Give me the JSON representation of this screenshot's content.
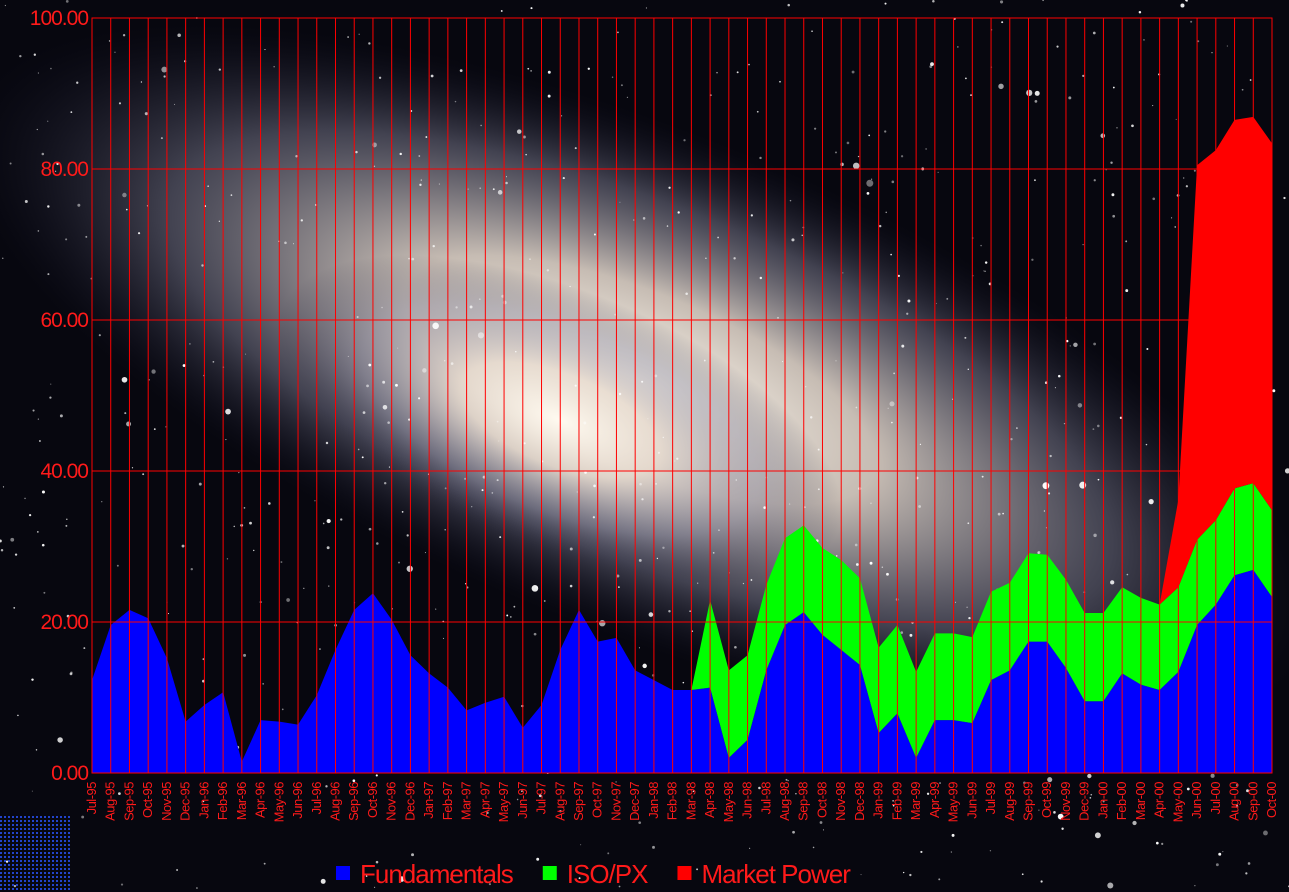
{
  "chart_data": {
    "type": "stacked-area",
    "categories": [
      "Jul-95",
      "Aug-95",
      "Sep-95",
      "Oct-95",
      "Nov-95",
      "Dec-95",
      "Jan-96",
      "Feb-96",
      "Mar-96",
      "Apr-96",
      "May-96",
      "Jun-96",
      "Jul-96",
      "Aug-96",
      "Sep-96",
      "Oct-96",
      "Nov-96",
      "Dec-96",
      "Jan-97",
      "Feb-97",
      "Mar-97",
      "Apr-97",
      "May-97",
      "Jun-97",
      "Jul-97",
      "Aug-97",
      "Sep-97",
      "Oct-97",
      "Nov-97",
      "Dec-97",
      "Jan-98",
      "Feb-98",
      "Mar-98",
      "Apr-98",
      "May-98",
      "Jun-98",
      "Jul-98",
      "Aug-98",
      "Sep-98",
      "Oct-98",
      "Nov-98",
      "Dec-98",
      "Jan-99",
      "Feb-99",
      "Mar-99",
      "Apr-99",
      "May-99",
      "Jun-99",
      "Jul-99",
      "Aug-99",
      "Sep-99",
      "Oct-99",
      "Nov-99",
      "Dec-99",
      "Jan-00",
      "Feb-00",
      "Mar-00",
      "Apr-00",
      "May-00",
      "Jun-00",
      "Jul-00",
      "Aug-00",
      "Sep-00",
      "Oct-00"
    ],
    "series": [
      {
        "name": "Fundamentals",
        "color": "#0000ff",
        "values": [
          12.3,
          19.6,
          21.6,
          20.5,
          15.2,
          6.8,
          9,
          10.7,
          1.5,
          7,
          6.8,
          6.4,
          10.3,
          16.3,
          21.6,
          23.8,
          20.3,
          15.6,
          13.2,
          11.3,
          8.3,
          9.3,
          10.1,
          6,
          9,
          16.3,
          21.6,
          17.4,
          17.9,
          13.6,
          12.3,
          11,
          11,
          11.3,
          2,
          4.4,
          13.6,
          19.6,
          21.3,
          18.3,
          16.3,
          14.3,
          5.3,
          7.9,
          2,
          7,
          7,
          6.6,
          12.3,
          13.6,
          17.4,
          17.4,
          13.9,
          9.5,
          9.5,
          13.2,
          11.7,
          11,
          13.4,
          19.6,
          22.3,
          26.2,
          26.9,
          23.3
        ]
      },
      {
        "name": "ISO/PX",
        "color": "#00ff00",
        "values": [
          0,
          0,
          0,
          0,
          0,
          0,
          0,
          0,
          0,
          0,
          0,
          0,
          0,
          0,
          0,
          0,
          0,
          0,
          0,
          0,
          0,
          0,
          0,
          0,
          0,
          0,
          0,
          0,
          0,
          0,
          0,
          0,
          0,
          11.6,
          11.6,
          11.2,
          11.3,
          11.5,
          11.5,
          11.5,
          11.9,
          11.5,
          11.3,
          11.7,
          11.4,
          11.5,
          11.5,
          11.4,
          11.7,
          11.6,
          11.7,
          11.5,
          11.7,
          11.7,
          11.7,
          11.4,
          11.5,
          11.3,
          11.2,
          11.3,
          11.2,
          11.5,
          11.5,
          11.5
        ]
      },
      {
        "name": "Market Power",
        "color": "#ff0000",
        "values": [
          0,
          0,
          0,
          0,
          0,
          0,
          0,
          0,
          0,
          0,
          0,
          0,
          0,
          0,
          0,
          0,
          0,
          0,
          0,
          0,
          0,
          0,
          0,
          0,
          0,
          0,
          0,
          0,
          0,
          0,
          0,
          0,
          0,
          0,
          0,
          0,
          0,
          0,
          0,
          0,
          0,
          0,
          0,
          0,
          0,
          0,
          0,
          0,
          0,
          0,
          0,
          0,
          0,
          0,
          0,
          0,
          0,
          0,
          11.6,
          49.6,
          49,
          48.8,
          48.5,
          48.6
        ]
      }
    ],
    "ylim": [
      0,
      100
    ],
    "yticks": [
      {
        "value": 0,
        "label": "0.00"
      },
      {
        "value": 20,
        "label": "20.00"
      },
      {
        "value": 40,
        "label": "40.00"
      },
      {
        "value": 60,
        "label": "60.00"
      },
      {
        "value": 80,
        "label": "80.00"
      },
      {
        "value": 100,
        "label": "100.00"
      }
    ],
    "grid": true,
    "grid_color": "#ff0000",
    "legend": "bottom"
  }
}
